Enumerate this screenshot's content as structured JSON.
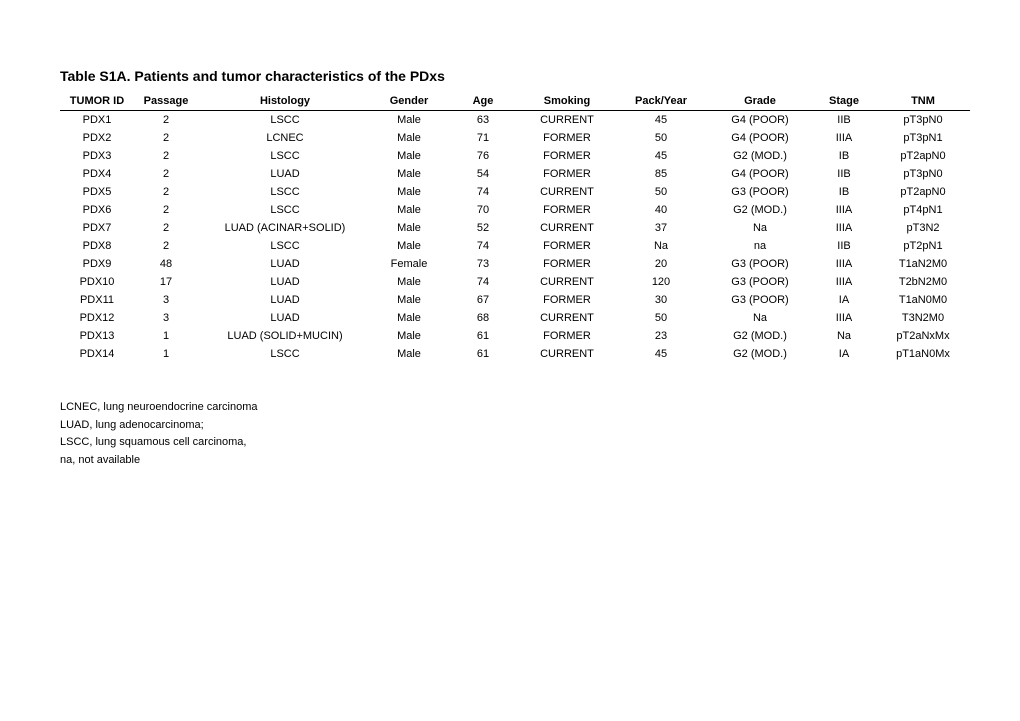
{
  "title": "Table S1A. Patients and tumor characteristics of the PDxs",
  "table": {
    "columns": [
      "TUMOR ID",
      "Passage",
      "Histology",
      "Gender",
      "Age",
      "Smoking",
      "Pack/Year",
      "Grade",
      "Stage",
      "TNM"
    ],
    "column_classes": [
      "col-tumorid",
      "col-passage",
      "col-histology",
      "col-gender",
      "col-age",
      "col-smoking",
      "col-packyear",
      "col-grade",
      "col-stage",
      "col-tnm"
    ],
    "rows": [
      [
        "PDX1",
        "2",
        "LSCC",
        "Male",
        "63",
        "CURRENT",
        "45",
        "G4  (POOR)",
        "IIB",
        "pT3pN0"
      ],
      [
        "PDX2",
        "2",
        "LCNEC",
        "Male",
        "71",
        "FORMER",
        "50",
        "G4  (POOR)",
        "IIIA",
        "pT3pN1"
      ],
      [
        "PDX3",
        "2",
        "LSCC",
        "Male",
        "76",
        "FORMER",
        "45",
        "G2 (MOD.)",
        "IB",
        "pT2apN0"
      ],
      [
        "PDX4",
        "2",
        "LUAD",
        "Male",
        "54",
        "FORMER",
        "85",
        "G4  (POOR)",
        "IIB",
        "pT3pN0"
      ],
      [
        "PDX5",
        "2",
        "LSCC",
        "Male",
        "74",
        "CURRENT",
        "50",
        "G3 (POOR)",
        "IB",
        "pT2apN0"
      ],
      [
        "PDX6",
        "2",
        "LSCC",
        "Male",
        "70",
        "FORMER",
        "40",
        "G2 (MOD.)",
        "IIIA",
        "pT4pN1"
      ],
      [
        "PDX7",
        "2",
        "LUAD (ACINAR+SOLID)",
        "Male",
        "52",
        "CURRENT",
        "37",
        "Na",
        "IIIA",
        "pT3N2"
      ],
      [
        "PDX8",
        "2",
        "LSCC",
        "Male",
        "74",
        "FORMER",
        "Na",
        "na",
        "IIB",
        "pT2pN1"
      ],
      [
        "PDX9",
        "48",
        "LUAD",
        "Female",
        "73",
        "FORMER",
        "20",
        "G3 (POOR)",
        "IIIA",
        "T1aN2M0"
      ],
      [
        "PDX10",
        "17",
        "LUAD",
        "Male",
        "74",
        "CURRENT",
        "120",
        "G3 (POOR)",
        "IIIA",
        "T2bN2M0"
      ],
      [
        "PDX11",
        "3",
        "LUAD",
        "Male",
        "67",
        "FORMER",
        "30",
        "G3 (POOR)",
        "IA",
        "T1aN0M0"
      ],
      [
        "PDX12",
        "3",
        "LUAD",
        "Male",
        "68",
        "CURRENT",
        "50",
        "Na",
        "IIIA",
        "T3N2M0"
      ],
      [
        "PDX13",
        "1",
        "LUAD (SOLID+MUCIN)",
        "Male",
        "61",
        "FORMER",
        "23",
        "G2 (MOD.)",
        "Na",
        "pT2aNxMx"
      ],
      [
        "PDX14",
        "1",
        "LSCC",
        "Male",
        "61",
        "CURRENT",
        "45",
        "G2 (MOD.)",
        "IA",
        "pT1aN0Mx"
      ]
    ]
  },
  "legend": [
    "LCNEC, lung neuroendocrine carcinoma",
    "LUAD, lung adenocarcinoma;",
    "LSCC, lung squamous cell carcinoma,",
    "na, not available"
  ]
}
